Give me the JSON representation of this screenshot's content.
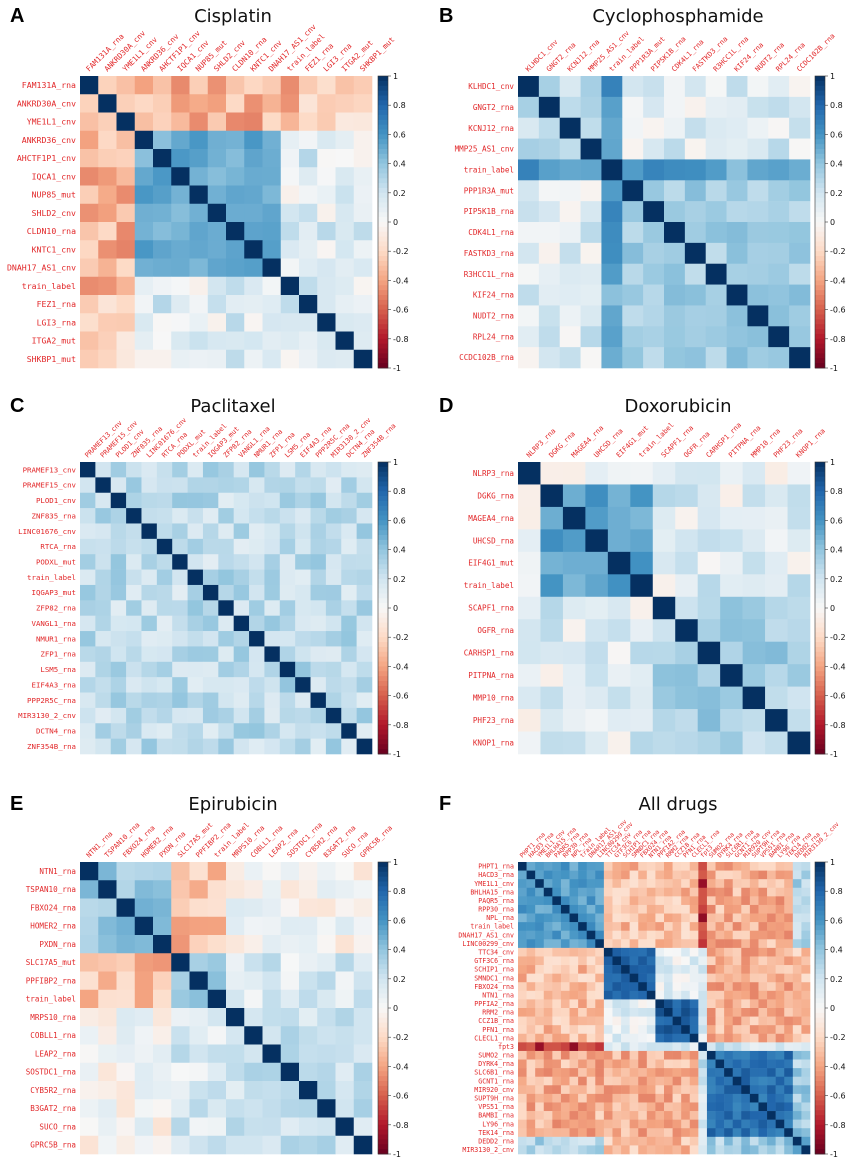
{
  "colorbar": {
    "ticks": [
      "1",
      "0.8",
      "0.6",
      "0.4",
      "0.2",
      "0",
      "-0.2",
      "-0.4",
      "-0.6",
      "-0.8",
      "-1"
    ],
    "scale": [
      "#67001f",
      "#b2182b",
      "#d6604d",
      "#f4a582",
      "#fddbc7",
      "#f7f7f7",
      "#d1e5f0",
      "#92c5de",
      "#4393c3",
      "#2166ac",
      "#053061"
    ]
  },
  "label_color": "#e2282a",
  "chart_data": [
    {
      "type": "heatmap",
      "letter": "A",
      "title": "Cisplatin",
      "labels": [
        "FAM131A_rna",
        "ANKRD30A_cnv",
        "YME1L1_cnv",
        "ANKRD36_cnv",
        "AHCTF1P1_cnv",
        "IQCA1_cnv",
        "NUP85_mut",
        "SHLD2_cnv",
        "CLDN10_rna",
        "KNTC1_cnv",
        "DNAH17_AS1_cnv",
        "train_label",
        "FEZ1_rna",
        "LGI3_rna",
        "ITGA2_mut",
        "SHKBP1_mut"
      ],
      "col_labels": [
        "FAM131A_rna",
        "ANKRD30A_cnv",
        "YME1L1_cnv",
        "ANKRD36_cnv",
        "AHCTF1P1_cnv",
        "IQCA1_cnv",
        "NUP85_mut",
        "SHLD2_cnv",
        "CLDN10_rna",
        "KNTC1_cnv",
        "DNAH17_AS1_cnv",
        "train_label",
        "FEZ1_rna",
        "LGI3_rna",
        "ITGA2_mut",
        "SHKBP1_mut"
      ],
      "groups": [
        [
          0,
          3,
          -0.3,
          0.7
        ],
        [
          3,
          11,
          0.4,
          0.6
        ],
        [
          11,
          12,
          0.2,
          0.3
        ],
        [
          12,
          16,
          0.05,
          0.2
        ]
      ],
      "cross": [
        [
          0,
          3,
          3,
          12,
          -0.35
        ],
        [
          0,
          3,
          12,
          16,
          -0.15
        ]
      ],
      "seed": 11,
      "vmin": -1,
      "vmax": 1
    },
    {
      "type": "heatmap",
      "letter": "B",
      "title": "Cyclophosphamide",
      "labels": [
        "KLHDC1_cnv",
        "GNGT2_rna",
        "KCNJ12_rna",
        "MMP25_AS1_cnv",
        "train_label",
        "PPP1R3A_mut",
        "PIP5K1B_rna",
        "CDK4L1_rna",
        "FASTKD3_rna",
        "R3HCC1L_rna",
        "KIF24_rna",
        "NUDT2_rna",
        "RPL24_rna",
        "CCDC102B_rna"
      ],
      "col_labels": [
        "KLHDC1_cnv",
        "GNGT2_rna",
        "KCNJ12_rna",
        "MMP25_AS1_cnv",
        "train_label",
        "PPP1R3A_mut",
        "PIP5K1B_rna",
        "CDK4L1_rna",
        "FASTKD3_rna",
        "R3HCC1L_rna",
        "KIF24_rna",
        "NUDT2_rna",
        "RPL24_rna",
        "CCDC102B_rna"
      ],
      "groups": [
        [
          0,
          4,
          0.15,
          0.35
        ],
        [
          4,
          5,
          0.55,
          0.6
        ],
        [
          5,
          14,
          0.25,
          0.45
        ]
      ],
      "cross": [
        [
          4,
          5,
          0,
          4,
          0.55
        ],
        [
          4,
          5,
          5,
          14,
          0.55
        ]
      ],
      "seed": 23,
      "vmin": -1,
      "vmax": 1
    },
    {
      "type": "heatmap",
      "letter": "C",
      "title": "Paclitaxel",
      "labels": [
        "PRAMEF13_cnv",
        "PRAMEF15_cnv",
        "PLOD1_cnv",
        "ZNF835_rna",
        "LINC01676_cnv",
        "RTCA_rna",
        "PODXL_mut",
        "train_label",
        "IQGAP3_mut",
        "ZFP82_rna",
        "VANGL1_rna",
        "NMUR1_rna",
        "ZFP1_rna",
        "LSM5_rna",
        "EIF4A3_rna",
        "PPP2R5C_rna",
        "MIR3130_2_cnv",
        "DCTN4_rna",
        "ZNF354B_rna"
      ],
      "col_labels": [
        "PRAMEF13_cnv",
        "PRAMEF15_cnv",
        "PLOD1_cnv",
        "ZNF835_rna",
        "LINC01676_cnv",
        "RTCA_rna",
        "PODXL_mut",
        "train_label",
        "IQGAP3_mut",
        "ZFP82_rna",
        "VANGL1_rna",
        "NMUR1_rna",
        "ZFP1_rna",
        "LSM5_rna",
        "EIF4A3_rna",
        "PPP2R5C_rna",
        "MIR3130_2_cnv",
        "DCTN4_rna",
        "ZNF354B_rna"
      ],
      "groups": [
        [
          0,
          19,
          0.1,
          0.4
        ]
      ],
      "cross": [],
      "seed": 37,
      "vmin": -1,
      "vmax": 1
    },
    {
      "type": "heatmap",
      "letter": "D",
      "title": "Doxorubicin",
      "labels": [
        "NLRP3_rna",
        "DGKG_rna",
        "MAGEA4_rna",
        "UHCSD_rna",
        "EIF4G1_mut",
        "train_label",
        "SCAPF1_rna",
        "OGFR_rna",
        "CARHSP1_rna",
        "PITPNA_rna",
        "MMP10_rna",
        "PHF23_rna",
        "KNOP1_rna"
      ],
      "col_labels": [
        "NLRP3_rna",
        "DGKG_rna",
        "MAGEA4_rna",
        "UHCSD_rna",
        "EIF4G1_mut",
        "train_label",
        "SCAPF1_rna",
        "OGFR_rna",
        "CARHSP1_rna",
        "PITPNA_rna",
        "MMP10_rna",
        "PHF23_rna",
        "KNOP1_rna"
      ],
      "groups": [
        [
          0,
          1,
          0.0,
          0.1
        ],
        [
          1,
          6,
          0.45,
          0.65
        ],
        [
          6,
          13,
          0.2,
          0.45
        ]
      ],
      "cross": [
        [
          0,
          1,
          1,
          13,
          0.05
        ]
      ],
      "seed": 41,
      "vmin": -1,
      "vmax": 1
    },
    {
      "type": "heatmap",
      "letter": "E",
      "title": "Epirubicin",
      "labels": [
        "NTN1_rna",
        "TSPAN10_rna",
        "FBXO24_rna",
        "HOMER2_rna",
        "PXDN_rna",
        "SLC17A5_mut",
        "PPFIBP2_rna",
        "train_label",
        "MRPS10_rna",
        "COBLL1_rna",
        "LEAP2_rna",
        "SOSTDC1_rna",
        "CYB5R2_rna",
        "B3GAT2_rna",
        "SUCO_rna",
        "GPRC5B_rna"
      ],
      "col_labels": [
        "NTN1_rna",
        "TSPAN10_rna",
        "FBXO24_rna",
        "HOMER2_rna",
        "PXDN_rna",
        "SLC17A5_mut",
        "PPFIBP2_rna",
        "train_label",
        "MRPS10_rna",
        "COBLL1_rna",
        "LEAP2_rna",
        "SOSTDC1_rna",
        "CYB5R2_rna",
        "B3GAT2_rna",
        "SUCO_rna",
        "GPRC5B_rna"
      ],
      "groups": [
        [
          0,
          5,
          0.25,
          0.5
        ],
        [
          5,
          8,
          0.3,
          0.45
        ],
        [
          8,
          16,
          0.1,
          0.35
        ]
      ],
      "cross": [
        [
          0,
          5,
          5,
          8,
          -0.3
        ],
        [
          0,
          5,
          8,
          16,
          0.0
        ],
        [
          5,
          8,
          8,
          16,
          0.15
        ]
      ],
      "seed": 53,
      "vmin": -1,
      "vmax": 1
    },
    {
      "type": "heatmap",
      "letter": "F",
      "title": "All drugs",
      "labels": [
        "PHPT1_rna",
        "HACD3_rna",
        "YME1L1_cnv",
        "BHLHA15_rna",
        "PAQR5_rna",
        "RPP30_rna",
        "NPL_rna",
        "train_label",
        "DNAH17_AS1_cnv",
        "LINC00299_cnv",
        "TTC34_cnv",
        "GTF3C6_rna",
        "SCHIP1_rna",
        "SMNDC1_rna",
        "FBXO24_rna",
        "NTN1_rna",
        "PPFIA2_rna",
        "RRM2_rna",
        "CCZ1B_rna",
        "PFN1_rna",
        "CLECL1_rna",
        "fpt3",
        "SUMO2_rna",
        "DYRK4_rna",
        "SLC6B1_rna",
        "GCNT1_rna",
        "MIR920_cnv",
        "SUPT9H_rna",
        "VPS51_rna",
        "BAMBI_rna",
        "LY96_rna",
        "TEK14_rna",
        "DEDD2_rna",
        "MIR3130_2_cnv"
      ],
      "col_labels": [
        "PHPT1_rna",
        "HACD3_rna",
        "YME1L1_cnv",
        "BHLHA15_rna",
        "PAQR5_rna",
        "RPP30_rna",
        "NPL_rna",
        "train_label",
        "DNAH17_AS1_cnv",
        "LINC00299_cnv",
        "TTC34_cnv",
        "GTF3C6_rna",
        "SCHIP1_rna",
        "SMNDC1_rna",
        "FBXO24_rna",
        "NTN1_rna",
        "PPFIA2_rna",
        "RRM2_rna",
        "CCZ1B_rna",
        "PFN1_rna",
        "CLECL1_rna",
        "fpt3",
        "SUMO2_rna",
        "DYRK4_rna",
        "SLC6B1_rna",
        "GCNT1_rna",
        "MIR920_cnv",
        "SUPT9H_rna",
        "VPS51_rna",
        "BAMBI_rna",
        "LY96_rna",
        "TEK14_rna",
        "DEDD2_rna",
        "MIR3130_2_cnv"
      ],
      "groups": [
        [
          0,
          10,
          0.45,
          0.65
        ],
        [
          10,
          16,
          0.75,
          0.85
        ],
        [
          16,
          21,
          0.75,
          0.9
        ],
        [
          21,
          22,
          0.2,
          0.3
        ],
        [
          22,
          32,
          0.65,
          0.85
        ],
        [
          32,
          34,
          0.4,
          0.55
        ]
      ],
      "cross": [
        [
          0,
          10,
          10,
          16,
          -0.3
        ],
        [
          0,
          10,
          16,
          21,
          -0.3
        ],
        [
          0,
          10,
          21,
          22,
          -0.75
        ],
        [
          0,
          10,
          22,
          32,
          -0.35
        ],
        [
          0,
          10,
          32,
          34,
          0.3
        ],
        [
          10,
          16,
          16,
          21,
          0.1
        ],
        [
          10,
          16,
          21,
          22,
          0.1
        ],
        [
          10,
          16,
          22,
          32,
          -0.35
        ],
        [
          10,
          16,
          32,
          34,
          -0.3
        ],
        [
          16,
          21,
          21,
          22,
          0.15
        ],
        [
          16,
          21,
          22,
          32,
          -0.35
        ],
        [
          16,
          21,
          32,
          34,
          -0.3
        ],
        [
          21,
          22,
          22,
          32,
          0.2
        ],
        [
          21,
          22,
          32,
          34,
          0.1
        ],
        [
          22,
          32,
          32,
          34,
          0.35
        ]
      ],
      "seed": 67,
      "vmin": -1,
      "vmax": 1
    }
  ]
}
